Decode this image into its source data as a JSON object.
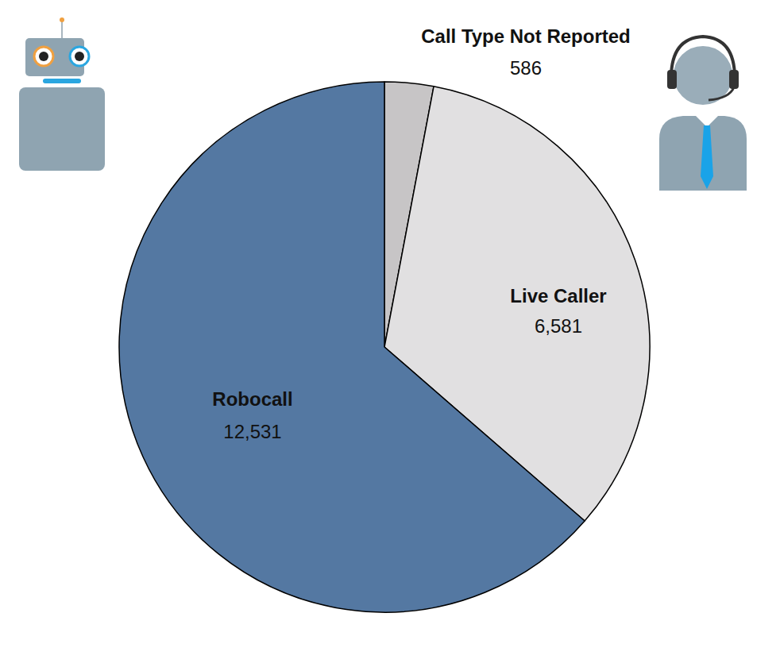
{
  "chart_data": {
    "type": "pie",
    "categories": [
      "Call Type Not Reported",
      "Live Caller",
      "Robocall"
    ],
    "values": [
      586,
      6581,
      12531
    ],
    "value_labels": [
      "586",
      "6,581",
      "12,531"
    ],
    "colors": [
      "#c7c5c6",
      "#e1e0e1",
      "#5478a2"
    ],
    "data_labels": true
  }
}
